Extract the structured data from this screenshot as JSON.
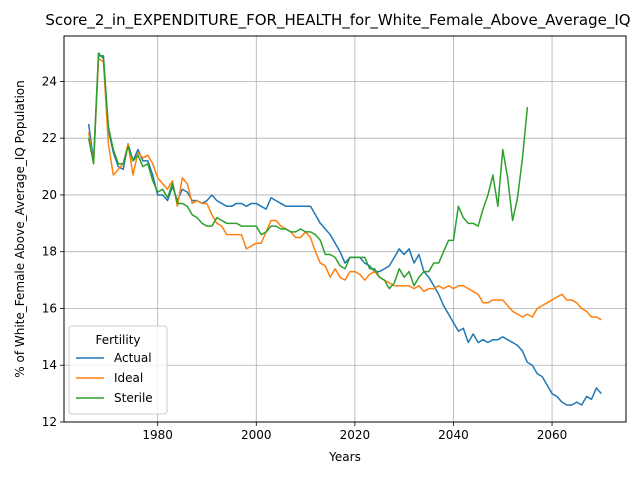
{
  "chart_data": {
    "type": "line",
    "title": "Score_2_in_EXPENDITURE_FOR_HEALTH_for_White_Female_Above_Average_IQ",
    "xlabel": "Years",
    "ylabel": "% of White_Female Above_Average_IQ Population",
    "xlim": [
      1961,
      2075
    ],
    "ylim": [
      12,
      25.6
    ],
    "xticks": [
      1980,
      2000,
      2020,
      2040,
      2060
    ],
    "yticks": [
      12,
      14,
      16,
      18,
      20,
      22,
      24
    ],
    "grid": true,
    "legend": {
      "title": "Fertility",
      "position": "lower-left"
    },
    "series": [
      {
        "name": "Actual",
        "color": "#1f77b4",
        "points": [
          [
            1966,
            22.5
          ],
          [
            1967,
            21.2
          ],
          [
            1968,
            24.9
          ],
          [
            1969,
            24.9
          ],
          [
            1970,
            22.3
          ],
          [
            1971,
            21.5
          ],
          [
            1972,
            21.0
          ],
          [
            1973,
            20.9
          ],
          [
            1974,
            21.8
          ],
          [
            1975,
            21.2
          ],
          [
            1976,
            21.6
          ],
          [
            1977,
            21.2
          ],
          [
            1978,
            21.2
          ],
          [
            1979,
            20.7
          ],
          [
            1980,
            20.0
          ],
          [
            1981,
            20.0
          ],
          [
            1982,
            19.8
          ],
          [
            1983,
            20.3
          ],
          [
            1984,
            19.8
          ],
          [
            1985,
            20.2
          ],
          [
            1986,
            20.1
          ],
          [
            1987,
            19.8
          ],
          [
            1988,
            19.8
          ],
          [
            1989,
            19.7
          ],
          [
            1990,
            19.8
          ],
          [
            1991,
            20.0
          ],
          [
            1992,
            19.8
          ],
          [
            1993,
            19.7
          ],
          [
            1994,
            19.6
          ],
          [
            1995,
            19.6
          ],
          [
            1996,
            19.7
          ],
          [
            1997,
            19.7
          ],
          [
            1998,
            19.6
          ],
          [
            1999,
            19.7
          ],
          [
            2000,
            19.7
          ],
          [
            2001,
            19.6
          ],
          [
            2002,
            19.5
          ],
          [
            2003,
            19.9
          ],
          [
            2004,
            19.8
          ],
          [
            2005,
            19.7
          ],
          [
            2006,
            19.6
          ],
          [
            2007,
            19.6
          ],
          [
            2008,
            19.6
          ],
          [
            2009,
            19.6
          ],
          [
            2010,
            19.6
          ],
          [
            2011,
            19.6
          ],
          [
            2012,
            19.3
          ],
          [
            2013,
            19.0
          ],
          [
            2014,
            18.8
          ],
          [
            2015,
            18.6
          ],
          [
            2016,
            18.3
          ],
          [
            2017,
            18.0
          ],
          [
            2018,
            17.6
          ],
          [
            2019,
            17.8
          ],
          [
            2020,
            17.8
          ],
          [
            2021,
            17.8
          ],
          [
            2022,
            17.6
          ],
          [
            2023,
            17.5
          ],
          [
            2024,
            17.3
          ],
          [
            2025,
            17.3
          ],
          [
            2026,
            17.4
          ],
          [
            2027,
            17.5
          ],
          [
            2028,
            17.8
          ],
          [
            2029,
            18.1
          ],
          [
            2030,
            17.9
          ],
          [
            2031,
            18.1
          ],
          [
            2032,
            17.6
          ],
          [
            2033,
            17.9
          ],
          [
            2034,
            17.3
          ],
          [
            2035,
            17.1
          ],
          [
            2036,
            16.8
          ],
          [
            2037,
            16.5
          ],
          [
            2038,
            16.1
          ],
          [
            2039,
            15.8
          ],
          [
            2040,
            15.5
          ],
          [
            2041,
            15.2
          ],
          [
            2042,
            15.3
          ],
          [
            2043,
            14.8
          ],
          [
            2044,
            15.1
          ],
          [
            2045,
            14.8
          ],
          [
            2046,
            14.9
          ],
          [
            2047,
            14.8
          ],
          [
            2048,
            14.9
          ],
          [
            2049,
            14.9
          ],
          [
            2050,
            15.0
          ],
          [
            2051,
            14.9
          ],
          [
            2052,
            14.8
          ],
          [
            2053,
            14.7
          ],
          [
            2054,
            14.5
          ],
          [
            2055,
            14.1
          ],
          [
            2056,
            14.0
          ],
          [
            2057,
            13.7
          ],
          [
            2058,
            13.6
          ],
          [
            2059,
            13.3
          ],
          [
            2060,
            13.0
          ],
          [
            2061,
            12.9
          ],
          [
            2062,
            12.7
          ],
          [
            2063,
            12.6
          ],
          [
            2064,
            12.6
          ],
          [
            2065,
            12.7
          ],
          [
            2066,
            12.6
          ],
          [
            2067,
            12.9
          ],
          [
            2068,
            12.8
          ],
          [
            2069,
            13.2
          ],
          [
            2070,
            13.0
          ]
        ]
      },
      {
        "name": "Ideal",
        "color": "#ff7f0e",
        "points": [
          [
            1966,
            22.2
          ],
          [
            1967,
            21.1
          ],
          [
            1968,
            24.8
          ],
          [
            1969,
            24.7
          ],
          [
            1970,
            21.8
          ],
          [
            1971,
            20.7
          ],
          [
            1972,
            20.9
          ],
          [
            1973,
            21.1
          ],
          [
            1974,
            21.8
          ],
          [
            1975,
            20.7
          ],
          [
            1976,
            21.5
          ],
          [
            1977,
            21.3
          ],
          [
            1978,
            21.4
          ],
          [
            1979,
            21.1
          ],
          [
            1980,
            20.6
          ],
          [
            1981,
            20.4
          ],
          [
            1982,
            20.2
          ],
          [
            1983,
            20.5
          ],
          [
            1984,
            19.6
          ],
          [
            1985,
            20.6
          ],
          [
            1986,
            20.4
          ],
          [
            1987,
            19.7
          ],
          [
            1988,
            19.8
          ],
          [
            1989,
            19.7
          ],
          [
            1990,
            19.7
          ],
          [
            1991,
            19.3
          ],
          [
            1992,
            19.0
          ],
          [
            1993,
            18.9
          ],
          [
            1994,
            18.6
          ],
          [
            1995,
            18.6
          ],
          [
            1996,
            18.6
          ],
          [
            1997,
            18.6
          ],
          [
            1998,
            18.1
          ],
          [
            1999,
            18.2
          ],
          [
            2000,
            18.3
          ],
          [
            2001,
            18.3
          ],
          [
            2002,
            18.7
          ],
          [
            2003,
            19.1
          ],
          [
            2004,
            19.1
          ],
          [
            2005,
            18.9
          ],
          [
            2006,
            18.8
          ],
          [
            2007,
            18.7
          ],
          [
            2008,
            18.5
          ],
          [
            2009,
            18.5
          ],
          [
            2010,
            18.7
          ],
          [
            2011,
            18.5
          ],
          [
            2012,
            18.0
          ],
          [
            2013,
            17.6
          ],
          [
            2014,
            17.5
          ],
          [
            2015,
            17.1
          ],
          [
            2016,
            17.4
          ],
          [
            2017,
            17.1
          ],
          [
            2018,
            17.0
          ],
          [
            2019,
            17.3
          ],
          [
            2020,
            17.3
          ],
          [
            2021,
            17.2
          ],
          [
            2022,
            17.0
          ],
          [
            2023,
            17.2
          ],
          [
            2024,
            17.3
          ],
          [
            2025,
            17.1
          ],
          [
            2026,
            17.0
          ],
          [
            2027,
            16.9
          ],
          [
            2028,
            16.8
          ],
          [
            2029,
            16.8
          ],
          [
            2030,
            16.8
          ],
          [
            2031,
            16.8
          ],
          [
            2032,
            16.7
          ],
          [
            2033,
            16.8
          ],
          [
            2034,
            16.6
          ],
          [
            2035,
            16.7
          ],
          [
            2036,
            16.7
          ],
          [
            2037,
            16.8
          ],
          [
            2038,
            16.7
          ],
          [
            2039,
            16.8
          ],
          [
            2040,
            16.7
          ],
          [
            2041,
            16.8
          ],
          [
            2042,
            16.8
          ],
          [
            2043,
            16.7
          ],
          [
            2044,
            16.6
          ],
          [
            2045,
            16.5
          ],
          [
            2046,
            16.2
          ],
          [
            2047,
            16.2
          ],
          [
            2048,
            16.3
          ],
          [
            2049,
            16.3
          ],
          [
            2050,
            16.3
          ],
          [
            2051,
            16.1
          ],
          [
            2052,
            15.9
          ],
          [
            2053,
            15.8
          ],
          [
            2054,
            15.7
          ],
          [
            2055,
            15.8
          ],
          [
            2056,
            15.7
          ],
          [
            2057,
            16.0
          ],
          [
            2058,
            16.1
          ],
          [
            2059,
            16.2
          ],
          [
            2060,
            16.3
          ],
          [
            2061,
            16.4
          ],
          [
            2062,
            16.5
          ],
          [
            2063,
            16.3
          ],
          [
            2064,
            16.3
          ],
          [
            2065,
            16.2
          ],
          [
            2066,
            16.0
          ],
          [
            2067,
            15.9
          ],
          [
            2068,
            15.7
          ],
          [
            2069,
            15.7
          ],
          [
            2070,
            15.6
          ]
        ]
      },
      {
        "name": "Sterile",
        "color": "#2ca02c",
        "points": [
          [
            1966,
            22.0
          ],
          [
            1967,
            21.1
          ],
          [
            1968,
            25.0
          ],
          [
            1969,
            24.8
          ],
          [
            1970,
            22.4
          ],
          [
            1971,
            21.6
          ],
          [
            1972,
            21.1
          ],
          [
            1973,
            21.1
          ],
          [
            1974,
            21.7
          ],
          [
            1975,
            21.2
          ],
          [
            1976,
            21.4
          ],
          [
            1977,
            21.0
          ],
          [
            1978,
            21.1
          ],
          [
            1979,
            20.5
          ],
          [
            1980,
            20.1
          ],
          [
            1981,
            20.2
          ],
          [
            1982,
            19.9
          ],
          [
            1983,
            20.4
          ],
          [
            1984,
            19.7
          ],
          [
            1985,
            19.7
          ],
          [
            1986,
            19.6
          ],
          [
            1987,
            19.3
          ],
          [
            1988,
            19.2
          ],
          [
            1989,
            19.0
          ],
          [
            1990,
            18.9
          ],
          [
            1991,
            18.9
          ],
          [
            1992,
            19.2
          ],
          [
            1993,
            19.1
          ],
          [
            1994,
            19.0
          ],
          [
            1995,
            19.0
          ],
          [
            1996,
            19.0
          ],
          [
            1997,
            18.9
          ],
          [
            1998,
            18.9
          ],
          [
            1999,
            18.9
          ],
          [
            2000,
            18.9
          ],
          [
            2001,
            18.6
          ],
          [
            2002,
            18.7
          ],
          [
            2003,
            18.9
          ],
          [
            2004,
            18.9
          ],
          [
            2005,
            18.8
          ],
          [
            2006,
            18.8
          ],
          [
            2007,
            18.7
          ],
          [
            2008,
            18.7
          ],
          [
            2009,
            18.8
          ],
          [
            2010,
            18.7
          ],
          [
            2011,
            18.7
          ],
          [
            2012,
            18.6
          ],
          [
            2013,
            18.4
          ],
          [
            2014,
            17.9
          ],
          [
            2015,
            17.9
          ],
          [
            2016,
            17.8
          ],
          [
            2017,
            17.5
          ],
          [
            2018,
            17.4
          ],
          [
            2019,
            17.8
          ],
          [
            2020,
            17.8
          ],
          [
            2021,
            17.8
          ],
          [
            2022,
            17.8
          ],
          [
            2023,
            17.4
          ],
          [
            2024,
            17.4
          ],
          [
            2025,
            17.1
          ],
          [
            2026,
            17.0
          ],
          [
            2027,
            16.7
          ],
          [
            2028,
            16.9
          ],
          [
            2029,
            17.4
          ],
          [
            2030,
            17.1
          ],
          [
            2031,
            17.3
          ],
          [
            2032,
            16.8
          ],
          [
            2033,
            17.1
          ],
          [
            2034,
            17.3
          ],
          [
            2035,
            17.3
          ],
          [
            2036,
            17.6
          ],
          [
            2037,
            17.6
          ],
          [
            2038,
            18.0
          ],
          [
            2039,
            18.4
          ],
          [
            2040,
            18.4
          ],
          [
            2041,
            19.6
          ],
          [
            2042,
            19.2
          ],
          [
            2043,
            19.0
          ],
          [
            2044,
            19.0
          ],
          [
            2045,
            18.9
          ],
          [
            2046,
            19.5
          ],
          [
            2047,
            20.0
          ],
          [
            2048,
            20.7
          ],
          [
            2049,
            19.6
          ],
          [
            2050,
            21.6
          ],
          [
            2051,
            20.6
          ],
          [
            2052,
            19.1
          ],
          [
            2053,
            19.9
          ],
          [
            2054,
            21.3
          ],
          [
            2055,
            23.1
          ]
        ]
      }
    ]
  }
}
